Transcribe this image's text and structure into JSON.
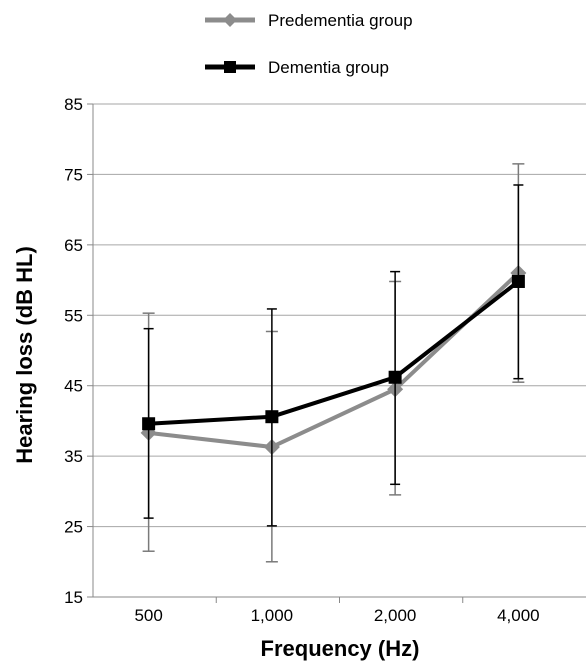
{
  "chart_data": {
    "type": "line",
    "title": "",
    "xlabel": "Frequency (Hz)",
    "ylabel": "Hearing loss (dB HL)",
    "categories": [
      "500",
      "1,000",
      "2,000",
      "4,000"
    ],
    "ylim": [
      15,
      85
    ],
    "yticks": [
      15,
      25,
      35,
      45,
      55,
      65,
      75,
      85
    ],
    "grid": "horizontal",
    "legend_position": "top",
    "series": [
      {
        "name": "Predementia group",
        "color": "#8c8c8c",
        "marker": "diamond",
        "values": [
          38.3,
          36.3,
          44.5,
          61.0
        ],
        "error_lower": [
          21.5,
          20.0,
          29.5,
          45.5
        ],
        "error_upper": [
          55.3,
          52.7,
          59.8,
          76.5
        ]
      },
      {
        "name": "Dementia group",
        "color": "#000000",
        "marker": "square",
        "values": [
          39.6,
          40.6,
          46.2,
          59.8
        ],
        "error_lower": [
          26.2,
          25.1,
          31.0,
          46.0
        ],
        "error_upper": [
          53.1,
          55.9,
          61.2,
          73.5
        ]
      }
    ]
  }
}
